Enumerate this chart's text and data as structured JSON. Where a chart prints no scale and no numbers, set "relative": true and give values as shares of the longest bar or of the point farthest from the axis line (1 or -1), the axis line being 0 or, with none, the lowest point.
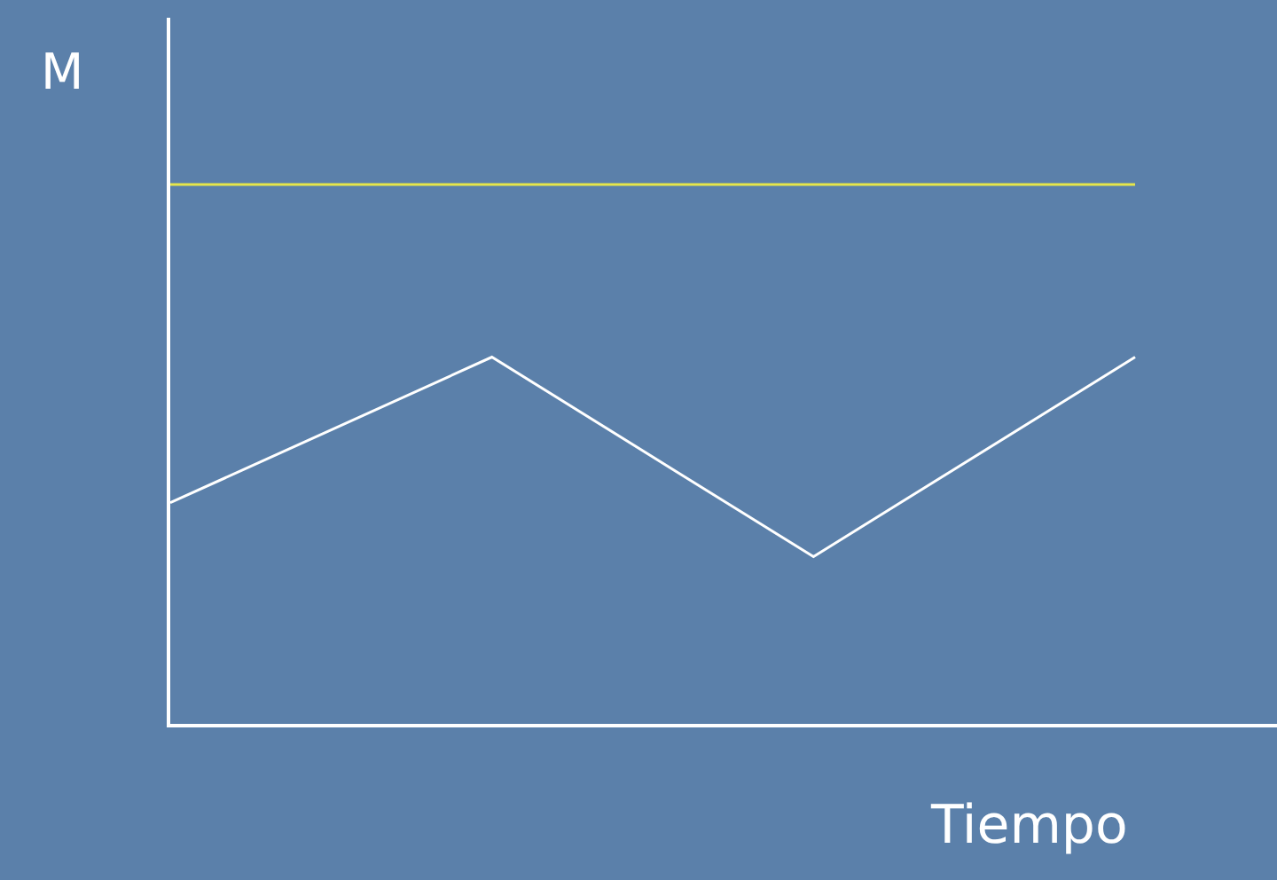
{
  "chart_data": {
    "type": "line",
    "relative": true,
    "xlabel": "Tiempo",
    "ylabel": "M",
    "categories": [
      null,
      null,
      null,
      null
    ],
    "series": [
      {
        "color": "#ffffff",
        "values": [
          0.41,
          0.68,
          0.31,
          0.68
        ]
      },
      {
        "color": "#e6e64a",
        "values": [
          1,
          1,
          1,
          1
        ]
      }
    ],
    "marker": "none",
    "line_style": "solid"
  }
}
